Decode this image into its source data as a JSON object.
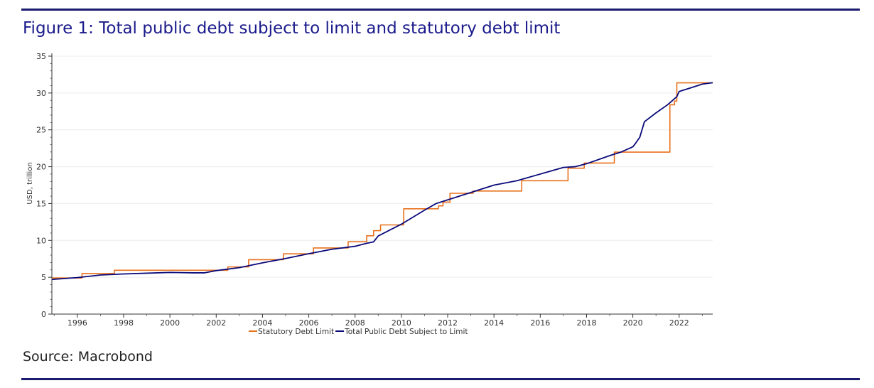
{
  "figure": {
    "title": "Figure 1: Total public debt subject to limit and statutory debt limit",
    "source": "Source: Macrobond",
    "title_color": "#1a1a8c",
    "rule_color": "#1a1a6e"
  },
  "chart_data": {
    "type": "line",
    "title": "Figure 1: Total public debt subject to limit and statutory debt limit",
    "xlabel": "",
    "ylabel": "USD, trillion",
    "xlim": [
      1994.9,
      2023.45
    ],
    "ylim": [
      0,
      35
    ],
    "x_ticks": [
      "1996",
      "1998",
      "2000",
      "2002",
      "2004",
      "2006",
      "2008",
      "2010",
      "2012",
      "2014",
      "2016",
      "2018",
      "2020",
      "2022"
    ],
    "y_ticks": [
      "0",
      "5",
      "10",
      "15",
      "20",
      "25",
      "30",
      "35"
    ],
    "grid": "horizontal",
    "legend_position": "bottom",
    "series": [
      {
        "name": "Statutory Debt Limit",
        "color": "#e8711c",
        "step": true,
        "x": [
          1994.9,
          1996.2,
          1997.6,
          2002.5,
          2003.4,
          2004.9,
          2006.2,
          2007.7,
          2008.5,
          2008.8,
          2009.1,
          2010.1,
          2011.6,
          2011.8,
          2012.1,
          2013.1,
          2015.2,
          2017.2,
          2017.9,
          2018.1,
          2019.2,
          2021.6,
          2021.8,
          2021.9,
          2023.45
        ],
        "values": [
          4.9,
          5.5,
          5.95,
          6.4,
          7.38,
          8.18,
          8.97,
          9.82,
          10.62,
          11.32,
          12.1,
          14.29,
          14.69,
          15.19,
          16.39,
          16.7,
          18.1,
          19.8,
          20.5,
          20.5,
          21.98,
          28.4,
          28.9,
          31.38,
          31.38
        ]
      },
      {
        "name": "Total Public Debt Subject to Limit",
        "color": "#0a0a7a",
        "step": false,
        "x": [
          1994.9,
          1996.0,
          1997.0,
          1998.0,
          1999.0,
          2000.0,
          2001.0,
          2001.5,
          2002.0,
          2003.0,
          2004.0,
          2005.0,
          2006.0,
          2007.0,
          2008.0,
          2008.5,
          2008.8,
          2009.0,
          2010.0,
          2011.0,
          2011.5,
          2012.0,
          2013.0,
          2014.0,
          2015.0,
          2016.0,
          2017.0,
          2017.5,
          2018.0,
          2019.0,
          2019.5,
          2020.0,
          2020.1,
          2020.3,
          2020.5,
          2021.0,
          2021.5,
          2021.9,
          2022.0,
          2022.5,
          2023.0,
          2023.45
        ],
        "values": [
          4.7,
          4.95,
          5.3,
          5.45,
          5.55,
          5.65,
          5.6,
          5.6,
          5.9,
          6.3,
          6.95,
          7.55,
          8.2,
          8.8,
          9.2,
          9.6,
          9.8,
          10.6,
          12.2,
          14.1,
          15.0,
          15.5,
          16.5,
          17.5,
          18.1,
          19.0,
          19.9,
          20.0,
          20.4,
          21.5,
          22.0,
          22.7,
          23.1,
          24.0,
          26.1,
          27.3,
          28.4,
          29.5,
          30.2,
          30.7,
          31.2,
          31.4
        ]
      }
    ]
  }
}
